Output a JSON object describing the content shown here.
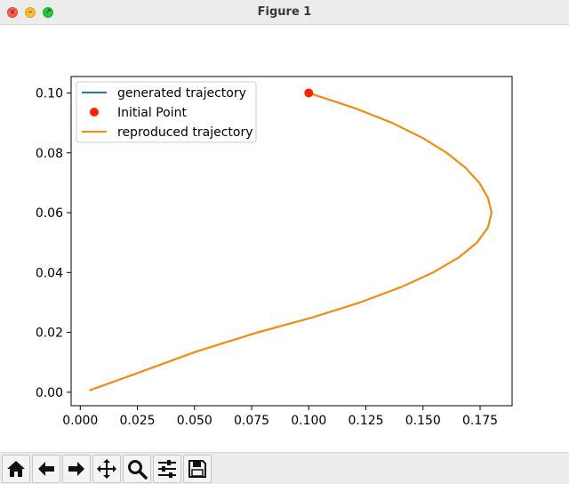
{
  "window": {
    "title": "Figure 1"
  },
  "toolbar": {
    "buttons": [
      {
        "name": "home-button",
        "icon": "home-icon"
      },
      {
        "name": "back-button",
        "icon": "arrow-left-icon"
      },
      {
        "name": "forward-button",
        "icon": "arrow-right-icon"
      },
      {
        "name": "pan-button",
        "icon": "move-icon"
      },
      {
        "name": "zoom-button",
        "icon": "magnifier-icon"
      },
      {
        "name": "configure-subplots-button",
        "icon": "sliders-icon"
      },
      {
        "name": "save-button",
        "icon": "floppy-disk-icon"
      }
    ]
  },
  "chart_data": {
    "type": "line",
    "title": "",
    "xlabel": "",
    "ylabel": "",
    "xlim": [
      -0.004,
      0.189
    ],
    "ylim": [
      -0.0045,
      0.1055
    ],
    "xticks": [
      0.0,
      0.025,
      0.05,
      0.075,
      0.1,
      0.125,
      0.15,
      0.175
    ],
    "xtick_labels": [
      "0.000",
      "0.025",
      "0.050",
      "0.075",
      "0.100",
      "0.125",
      "0.150",
      "0.175"
    ],
    "yticks": [
      0.0,
      0.02,
      0.04,
      0.06,
      0.08,
      0.1
    ],
    "ytick_labels": [
      "0.00",
      "0.02",
      "0.04",
      "0.06",
      "0.08",
      "0.10"
    ],
    "grid": false,
    "legend_position": "upper-left",
    "series": [
      {
        "name": "generated trajectory",
        "kind": "line",
        "color": "#1f77b4",
        "x": [
          0.1,
          0.1199,
          0.1365,
          0.1498,
          0.1604,
          0.1686,
          0.1746,
          0.1784,
          0.18,
          0.1784,
          0.1736,
          0.1656,
          0.1544,
          0.14,
          0.1224,
          0.1016,
          0.0776,
          0.0504,
          0.0236,
          0.004
        ],
        "y": [
          0.1,
          0.095,
          0.09,
          0.085,
          0.08,
          0.075,
          0.07,
          0.065,
          0.06,
          0.055,
          0.05,
          0.045,
          0.04,
          0.035,
          0.03,
          0.025,
          0.02,
          0.0135,
          0.006,
          0.0006
        ]
      },
      {
        "name": "Initial Point",
        "kind": "scatter",
        "color": "#ff2200",
        "x": [
          0.1
        ],
        "y": [
          0.1
        ]
      },
      {
        "name": "reproduced trajectory",
        "kind": "line",
        "color": "#ff8c00",
        "x": [
          0.1,
          0.1199,
          0.1365,
          0.1498,
          0.1604,
          0.1686,
          0.1746,
          0.1784,
          0.18,
          0.1784,
          0.1736,
          0.1656,
          0.1544,
          0.14,
          0.1224,
          0.1016,
          0.0776,
          0.0504,
          0.0236,
          0.004
        ],
        "y": [
          0.1,
          0.095,
          0.09,
          0.085,
          0.08,
          0.075,
          0.07,
          0.065,
          0.06,
          0.055,
          0.05,
          0.045,
          0.04,
          0.035,
          0.03,
          0.025,
          0.02,
          0.0135,
          0.006,
          0.0006
        ]
      }
    ]
  }
}
